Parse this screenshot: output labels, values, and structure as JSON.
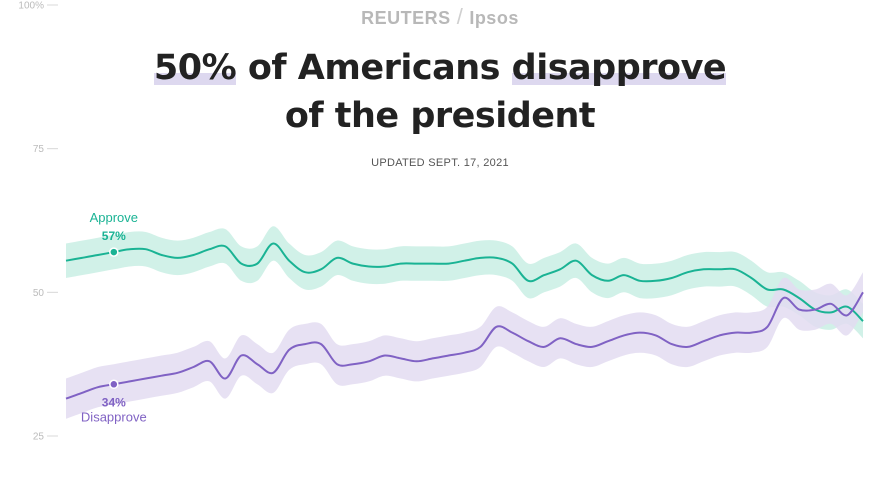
{
  "header": {
    "brand_left": "REUTERS",
    "brand_right": "Ipsos",
    "title_hl_1": "50%",
    "title_mid": " of Americans ",
    "title_hl_2": "disapprove",
    "title_line2": "of the president",
    "updated": "UPDATED SEPT. 17, 2021"
  },
  "colors": {
    "approve": "#1ab394",
    "approve_band": "#c9eee4",
    "disapprove": "#8062c4",
    "disapprove_band": "#e3dcf1",
    "highlight": "#ddd8ef"
  },
  "chart_data": {
    "type": "line",
    "ylim": [
      25,
      100
    ],
    "yticks": [
      25,
      50,
      75,
      100
    ],
    "ytick_labels": [
      "25",
      "50",
      "75",
      "100%"
    ],
    "x": [
      0,
      2,
      4,
      6,
      8,
      10,
      12,
      14,
      16,
      18,
      20,
      22,
      24,
      26,
      28,
      30,
      32,
      34,
      36,
      38,
      40,
      42,
      44,
      46,
      48,
      50,
      52,
      54,
      56,
      58,
      60,
      62,
      64,
      66,
      68,
      70,
      72,
      74,
      76,
      78,
      80,
      82,
      84,
      86,
      88,
      90,
      92,
      94,
      96,
      98,
      100
    ],
    "series": [
      {
        "name": "Approve",
        "values": [
          55.5,
          56,
          56.5,
          57,
          57.5,
          57.5,
          56.5,
          56,
          56.5,
          57.5,
          58,
          55,
          55,
          58.5,
          55.5,
          53.5,
          54,
          56,
          55,
          54.5,
          54.5,
          55,
          55,
          55,
          55,
          55.5,
          56,
          56,
          55,
          52,
          53,
          54,
          55.5,
          53,
          52,
          53,
          52,
          52,
          52.5,
          53.5,
          54,
          54,
          54,
          52.5,
          50.5,
          50.5,
          49,
          47,
          46.5,
          47.5,
          45
        ],
        "band": 3,
        "label_value": "57%",
        "label_x": 6
      },
      {
        "name": "Disapprove",
        "values": [
          31.5,
          32.5,
          33.5,
          34,
          34.5,
          35,
          35.5,
          36,
          37,
          38,
          35,
          39,
          37.5,
          36,
          40,
          41,
          41,
          37.5,
          37.5,
          38,
          39,
          38.5,
          38,
          38.5,
          39,
          39.5,
          40.5,
          44,
          43,
          41.5,
          40.5,
          42,
          41,
          40.5,
          41.5,
          42.5,
          43,
          42.5,
          41,
          40.5,
          41.5,
          42.5,
          43,
          43,
          44,
          49,
          47,
          47,
          48,
          46,
          50
        ],
        "band": 3.5,
        "label_value": "34%",
        "label_x": 6
      }
    ],
    "title": "",
    "xlabel": "",
    "ylabel": "",
    "grid": false
  }
}
